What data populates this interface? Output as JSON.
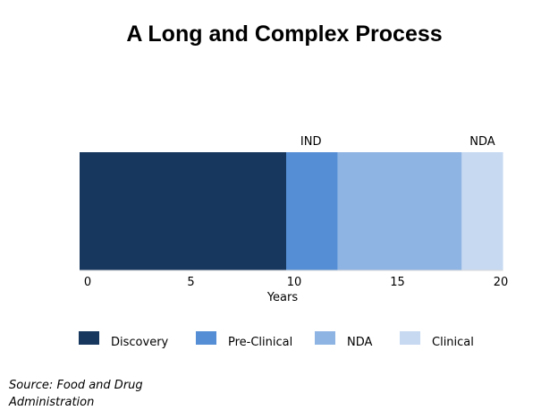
{
  "chart_data": {
    "type": "bar",
    "orientation": "horizontal",
    "stacked": true,
    "title": "A Long and Complex Process",
    "xlabel": "Years",
    "ylabel": "",
    "xlim": [
      0,
      20
    ],
    "xticks": [
      0,
      5,
      10,
      15,
      20
    ],
    "segments": [
      {
        "name": "Discovery",
        "start": 0,
        "end": 10,
        "color": "#17375e"
      },
      {
        "name": "Pre-Clinical",
        "start": 10,
        "end": 12.5,
        "color": "#558ed5"
      },
      {
        "name": "NDA",
        "start": 12.5,
        "end": 18.5,
        "color": "#8eb4e3"
      },
      {
        "name": "Clinical",
        "start": 18.5,
        "end": 20.5,
        "color": "#c6d9f1"
      }
    ],
    "annotations": [
      {
        "text": "IND",
        "x": 11.2
      },
      {
        "text": "NDA",
        "x": 19.5
      }
    ],
    "legend": {
      "position": "bottom"
    },
    "grid": false
  },
  "source_text": "Source: Food and Drug Administration"
}
